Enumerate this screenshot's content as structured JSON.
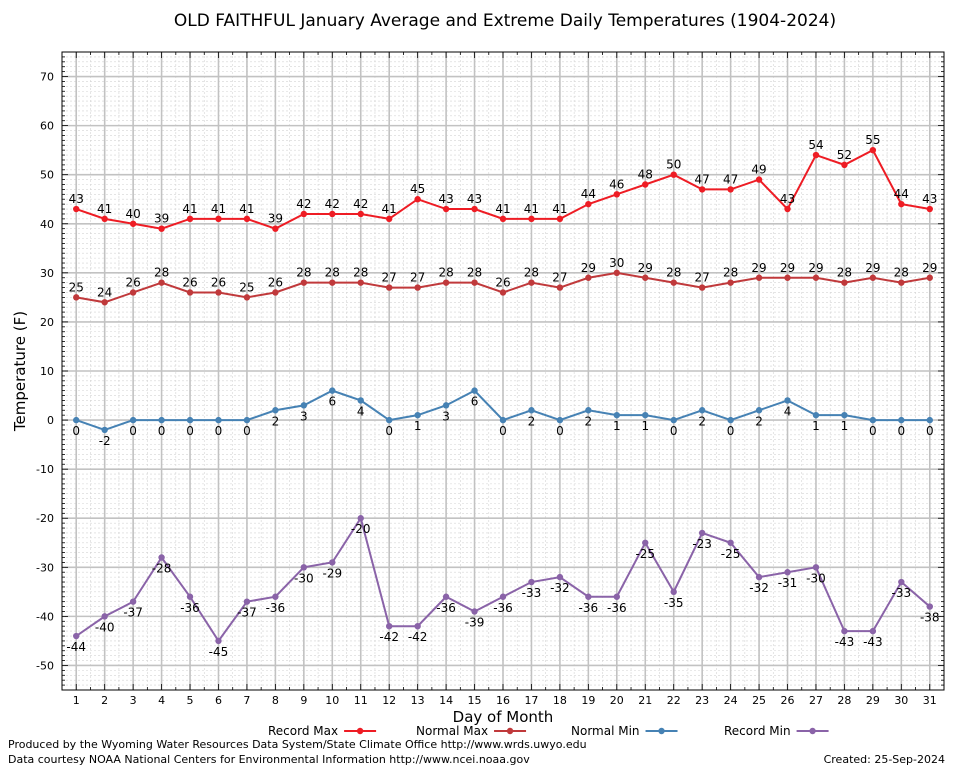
{
  "chart_data": {
    "type": "line",
    "title": "OLD FAITHFUL January Average and Extreme Daily Temperatures (1904-2024)",
    "xlabel": "Day of Month",
    "ylabel": "Temperature (F)",
    "xlim": [
      0.5,
      31.5
    ],
    "ylim": [
      -55,
      75
    ],
    "y_ticks": [
      -50,
      -40,
      -30,
      -20,
      -10,
      0,
      10,
      20,
      30,
      40,
      50,
      60,
      70
    ],
    "x": [
      1,
      2,
      3,
      4,
      5,
      6,
      7,
      8,
      9,
      10,
      11,
      12,
      13,
      14,
      15,
      16,
      17,
      18,
      19,
      20,
      21,
      22,
      23,
      24,
      25,
      26,
      27,
      28,
      29,
      30,
      31
    ],
    "grid": true,
    "legend_position": "bottom",
    "series": [
      {
        "name": "Record Max",
        "color": "#ee1c24",
        "values": [
          43,
          41,
          40,
          39,
          41,
          41,
          41,
          39,
          42,
          42,
          42,
          41,
          45,
          43,
          43,
          41,
          41,
          41,
          44,
          46,
          48,
          50,
          47,
          47,
          49,
          43,
          54,
          52,
          55,
          44,
          43
        ],
        "label_side": "above"
      },
      {
        "name": "Normal Max",
        "color": "#c0393b",
        "values": [
          25,
          24,
          26,
          28,
          26,
          26,
          25,
          26,
          28,
          28,
          28,
          27,
          27,
          28,
          28,
          26,
          28,
          27,
          29,
          30,
          29,
          28,
          27,
          28,
          29,
          29,
          29,
          28,
          29,
          28,
          29
        ],
        "label_side": "above"
      },
      {
        "name": "Normal Min",
        "color": "#4682b4",
        "values": [
          0,
          -2,
          0,
          0,
          0,
          0,
          0,
          2,
          3,
          6,
          4,
          0,
          1,
          3,
          6,
          0,
          2,
          0,
          2,
          1,
          1,
          0,
          2,
          0,
          2,
          4,
          1,
          1,
          0,
          0,
          0
        ],
        "label_side": "below"
      },
      {
        "name": "Record Min",
        "color": "#8a63a8",
        "values": [
          -44,
          -40,
          -37,
          -28,
          -36,
          -45,
          -37,
          -36,
          -30,
          -29,
          -20,
          -42,
          -42,
          -36,
          -39,
          -36,
          -33,
          -32,
          -36,
          -36,
          -25,
          -35,
          -23,
          -25,
          -32,
          -31,
          -30,
          -43,
          -43,
          -33,
          -38
        ],
        "label_side": "below"
      }
    ]
  },
  "footer": {
    "produced_by": "Produced by the Wyoming Water Resources Data System/State Climate Office http://www.wrds.uwyo.edu",
    "courtesy": "Data courtesy NOAA National Centers for Environmental Information http://www.ncei.noaa.gov",
    "created": "Created: 25-Sep-2024"
  }
}
